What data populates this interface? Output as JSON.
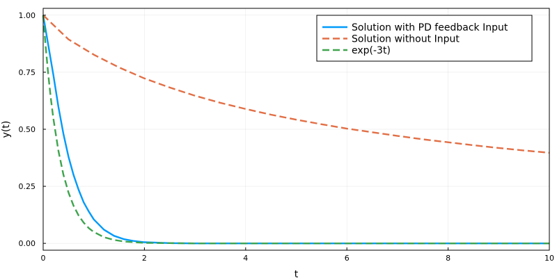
{
  "chart_data": {
    "type": "line",
    "title": "",
    "xlabel": "t",
    "ylabel": "y(t)",
    "xlim": [
      0,
      10
    ],
    "ylim": [
      -0.03,
      1.03
    ],
    "x_ticks": [
      0,
      2,
      4,
      6,
      8,
      10
    ],
    "x_tick_labels": [
      "0",
      "2",
      "4",
      "6",
      "8",
      "10"
    ],
    "y_ticks": [
      0.0,
      0.25,
      0.5,
      0.75,
      1.0
    ],
    "y_tick_labels": [
      "0.00",
      "0.25",
      "0.50",
      "0.75",
      "1.00"
    ],
    "grid": true,
    "legend_position": "top-right",
    "series": [
      {
        "name": "Solution with PD feedback Input",
        "color": "#009AFA",
        "dash": "solid",
        "x": [
          0,
          0.1,
          0.2,
          0.3,
          0.4,
          0.5,
          0.6,
          0.7,
          0.8,
          0.9,
          1.0,
          1.2,
          1.4,
          1.6,
          1.8,
          2.0,
          2.5,
          3.0,
          4.0,
          6.0,
          8.0,
          10.0
        ],
        "y": [
          1.0,
          0.87,
          0.74,
          0.6,
          0.48,
          0.38,
          0.3,
          0.235,
          0.18,
          0.14,
          0.105,
          0.06,
          0.033,
          0.018,
          0.01,
          0.005,
          0.001,
          0.0,
          0.0,
          0.0,
          0.0,
          0.0
        ]
      },
      {
        "name": "Solution without Input",
        "color": "#E26F46",
        "dash": "dashed",
        "x": [
          0,
          0.5,
          1,
          1.5,
          2,
          2.5,
          3,
          3.5,
          4,
          4.5,
          5,
          5.5,
          6,
          6.5,
          7,
          7.5,
          8,
          8.5,
          9,
          9.5,
          10
        ],
        "y": [
          1.0,
          0.894,
          0.827,
          0.771,
          0.723,
          0.683,
          0.647,
          0.616,
          0.589,
          0.564,
          0.542,
          0.522,
          0.503,
          0.487,
          0.471,
          0.456,
          0.443,
          0.43,
          0.418,
          0.407,
          0.397
        ]
      },
      {
        "name": "exp(-3t)",
        "color": "#3EA44E",
        "dash": "dashed",
        "x": [
          0,
          0.05,
          0.1,
          0.15,
          0.2,
          0.3,
          0.4,
          0.5,
          0.6,
          0.7,
          0.8,
          0.9,
          1.0,
          1.2,
          1.4,
          1.6,
          1.8,
          2.0,
          2.5,
          3.0,
          4.0,
          6.0,
          8.0,
          10.0
        ],
        "y": [
          1.0,
          0.861,
          0.741,
          0.638,
          0.549,
          0.407,
          0.301,
          0.223,
          0.165,
          0.122,
          0.091,
          0.067,
          0.05,
          0.027,
          0.015,
          0.008,
          0.005,
          0.002,
          0.001,
          0.0,
          0.0,
          0.0,
          0.0,
          0.0
        ]
      }
    ]
  }
}
